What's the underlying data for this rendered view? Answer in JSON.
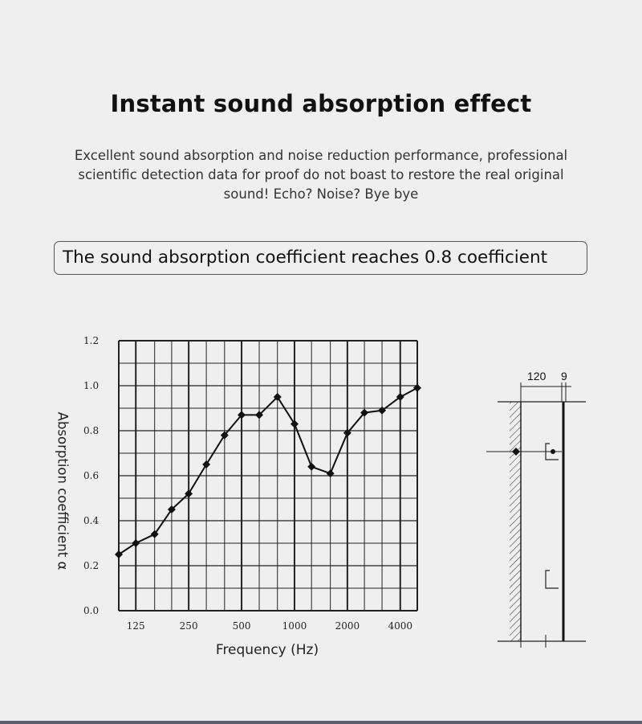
{
  "header": {
    "title": "Instant sound absorption effect",
    "subtitle": "Excellent sound absorption and noise reduction performance, professional scientific detection data for proof do not boast to restore the real original sound! Echo? Noise? Bye bye"
  },
  "banner": {
    "text": "The sound absorption coefficient reaches 0.8 coefficient"
  },
  "chart_data": {
    "type": "line",
    "xlabel": "Frequency (Hz)",
    "ylabel": "Absorption coefficient α",
    "x_tick_labels": [
      "125",
      "250",
      "500",
      "1000",
      "2000",
      "4000"
    ],
    "y_tick_labels": [
      "0.0",
      "0.2",
      "0.4",
      "0.6",
      "0.8",
      "1.0",
      "1.2"
    ],
    "ylim": [
      0,
      1.2
    ],
    "x_scale": "log (one-third octave bands)",
    "grid": true,
    "marker": "diamond",
    "x": [
      100,
      125,
      160,
      200,
      250,
      315,
      400,
      500,
      630,
      800,
      1000,
      1250,
      1600,
      2000,
      2500,
      3150,
      4000,
      5000
    ],
    "values": [
      0.25,
      0.3,
      0.34,
      0.45,
      0.52,
      0.65,
      0.78,
      0.87,
      0.87,
      0.95,
      0.83,
      0.64,
      0.61,
      0.79,
      0.88,
      0.89,
      0.95,
      0.99
    ]
  },
  "diagram": {
    "dimension_labels": [
      "120",
      "9"
    ]
  },
  "colors": {
    "background": "#efefef",
    "line": "#111111",
    "grid": "#222222"
  }
}
